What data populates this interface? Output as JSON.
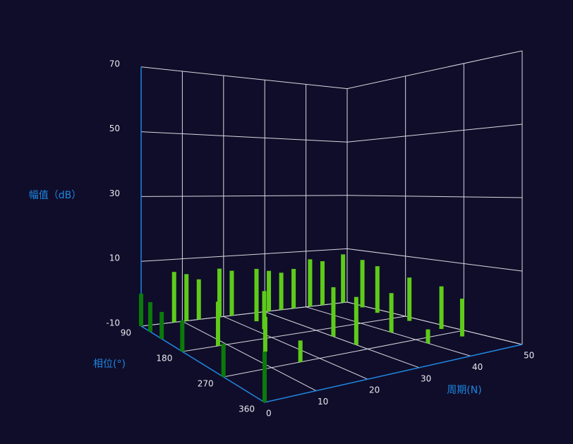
{
  "chart_data": {
    "type": "bar3D",
    "zlabel": "幅值（dB）",
    "xlabel": "相位(°)",
    "ylabel": "周期(N)",
    "xlim": [
      90,
      360
    ],
    "xticks": [
      90,
      180,
      270,
      360
    ],
    "ylim": [
      0,
      50
    ],
    "yticks": [
      0,
      10,
      20,
      30,
      40,
      50
    ],
    "zlim": [
      -10,
      70
    ],
    "zticks": [
      -10,
      10,
      30,
      50,
      70
    ],
    "grid": true,
    "series": [
      {
        "color": "#0b7a0b",
        "x": [
          90,
          110,
          135,
          180,
          270,
          360
        ],
        "y": [
          0,
          0,
          0,
          0,
          0,
          0
        ],
        "values": [
          0,
          -1,
          -2,
          -1,
          -1,
          3
        ]
      },
      {
        "color": "#5ecb1a",
        "x": [
          90,
          90,
          90,
          90,
          90,
          90,
          90,
          90,
          90,
          90,
          90,
          90,
          120,
          150,
          200,
          250,
          290,
          180,
          220,
          150,
          120,
          210,
          250,
          270,
          230,
          290
        ],
        "y": [
          8,
          11,
          14,
          19,
          22,
          28,
          31,
          34,
          37,
          41,
          44,
          49,
          49,
          48,
          48,
          48,
          47,
          8,
          14,
          22,
          24,
          30,
          30,
          16,
          40,
          40
        ],
        "values": [
          6,
          5,
          3,
          6,
          5,
          5,
          4,
          3,
          4,
          7,
          6,
          8,
          7,
          6,
          4,
          3,
          1,
          3,
          0,
          2,
          4,
          5,
          4,
          -4,
          2,
          -6
        ]
      }
    ]
  }
}
